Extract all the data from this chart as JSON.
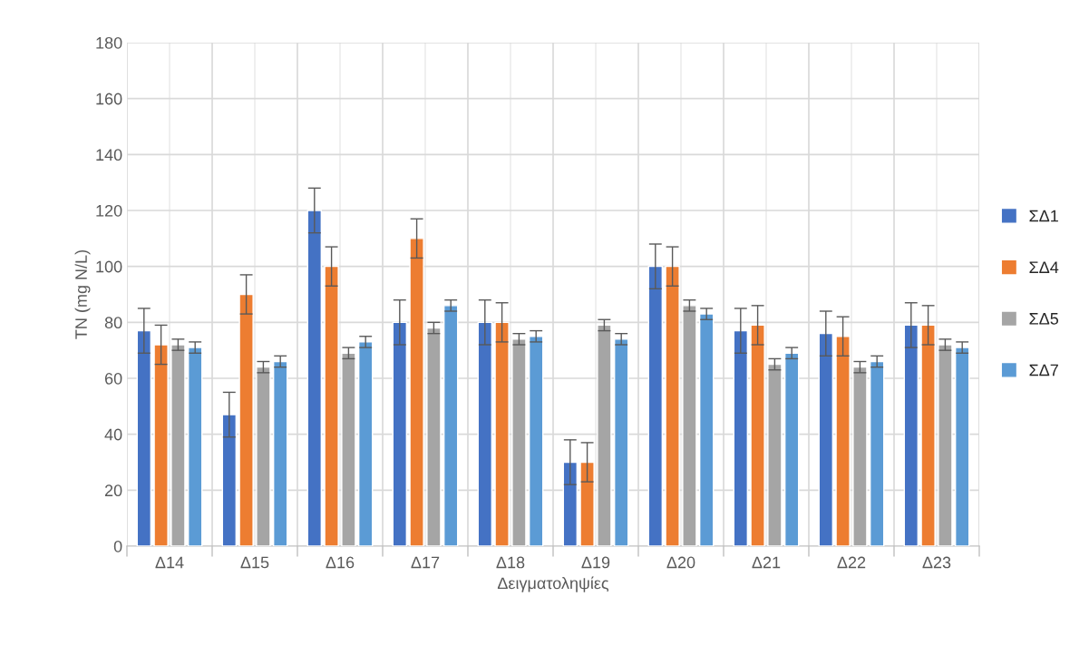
{
  "chart_data": {
    "type": "bar",
    "xlabel": "Δειγματοληψίες",
    "ylabel": "TN (mg N/L)",
    "categories": [
      "Δ14",
      "Δ15",
      "Δ16",
      "Δ17",
      "Δ18",
      "Δ19",
      "Δ20",
      "Δ21",
      "Δ22",
      "Δ23"
    ],
    "series": [
      {
        "name": "ΣΔ1",
        "color": "#4472c4",
        "values": [
          77,
          47,
          120,
          80,
          80,
          30,
          100,
          77,
          76,
          79
        ],
        "errors": [
          8,
          8,
          8,
          8,
          8,
          8,
          8,
          8,
          8,
          8
        ]
      },
      {
        "name": "ΣΔ4",
        "color": "#ed7d31",
        "values": [
          72,
          90,
          100,
          110,
          80,
          30,
          100,
          79,
          75,
          79
        ],
        "errors": [
          7,
          7,
          7,
          7,
          7,
          7,
          7,
          7,
          7,
          7
        ]
      },
      {
        "name": "ΣΔ5",
        "color": "#a5a5a5",
        "values": [
          72,
          64,
          69,
          78,
          74,
          79,
          86,
          65,
          64,
          72
        ],
        "errors": [
          2,
          2,
          2,
          2,
          2,
          2,
          2,
          2,
          2,
          2
        ]
      },
      {
        "name": "ΣΔ7",
        "color": "#5b9bd5",
        "values": [
          71,
          66,
          73,
          86,
          75,
          74,
          83,
          69,
          66,
          71
        ],
        "errors": [
          2,
          2,
          2,
          2,
          2,
          2,
          2,
          2,
          2,
          2
        ]
      }
    ],
    "ylim": [
      0,
      180
    ],
    "yticks": [
      0,
      20,
      40,
      60,
      80,
      100,
      120,
      140,
      160,
      180
    ],
    "grid": true,
    "legend": "right"
  }
}
